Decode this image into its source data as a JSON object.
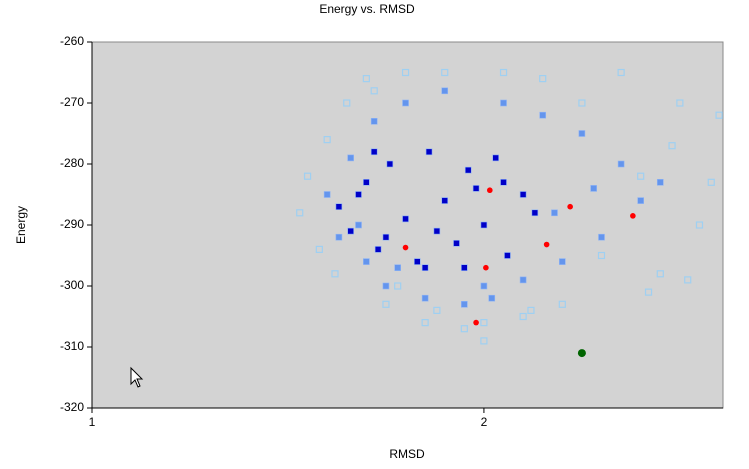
{
  "chart_data": {
    "type": "scatter",
    "title": "Energy vs. RMSD",
    "x_label": "RMSD",
    "y_label": "Energy",
    "xlim": [
      1,
      2.61
    ],
    "ylim": [
      -320,
      -260
    ],
    "xticks": [
      1,
      2
    ],
    "yticks": [
      -260,
      -270,
      -280,
      -290,
      -300,
      -310,
      -320
    ],
    "background": "#d3d3d3",
    "series": [
      {
        "color": "#9fd0f2",
        "marker": "square-open",
        "x": [
          1.53,
          1.55,
          1.58,
          1.6,
          1.62,
          1.65,
          1.7,
          1.75,
          1.8,
          1.85,
          1.9,
          1.95,
          2.0,
          2.05,
          2.1,
          2.15,
          2.2,
          2.25,
          2.3,
          2.35,
          2.4,
          2.45,
          2.5,
          2.55,
          2.6,
          2.58,
          2.52,
          2.48,
          2.42,
          1.78,
          1.88,
          2.0,
          2.12,
          1.72
        ],
        "values": [
          -288,
          -282,
          -294,
          -276,
          -298,
          -270,
          -266,
          -303,
          -265,
          -306,
          -265,
          -307,
          -309,
          -265,
          -305,
          -266,
          -303,
          -270,
          -295,
          -265,
          -282,
          -298,
          -270,
          -290,
          -272,
          -283,
          -299,
          -277,
          -301,
          -300,
          -304,
          -306,
          -304,
          -268
        ]
      },
      {
        "color": "#6495ed",
        "marker": "square",
        "x": [
          1.6,
          1.63,
          1.66,
          1.7,
          1.72,
          1.75,
          1.8,
          1.85,
          1.9,
          1.95,
          2.0,
          2.05,
          2.1,
          2.15,
          2.2,
          2.25,
          2.3,
          2.35,
          2.4,
          2.45,
          1.68,
          1.78,
          2.02,
          2.18,
          2.28
        ],
        "values": [
          -285,
          -292,
          -279,
          -296,
          -273,
          -300,
          -270,
          -302,
          -268,
          -303,
          -300,
          -270,
          -299,
          -272,
          -296,
          -275,
          -292,
          -280,
          -286,
          -283,
          -290,
          -297,
          -302,
          -288,
          -284
        ]
      },
      {
        "color": "#0000c8",
        "marker": "square",
        "x": [
          1.63,
          1.66,
          1.7,
          1.73,
          1.76,
          1.8,
          1.83,
          1.86,
          1.9,
          1.93,
          1.96,
          2.0,
          2.03,
          2.06,
          2.1,
          2.13,
          1.68,
          1.75,
          1.85,
          1.95,
          2.05,
          1.72,
          1.88,
          1.98
        ],
        "values": [
          -287,
          -291,
          -283,
          -294,
          -280,
          -289,
          -296,
          -278,
          -286,
          -293,
          -281,
          -290,
          -279,
          -295,
          -285,
          -288,
          -285,
          -292,
          -297,
          -297,
          -283,
          -278,
          -291,
          -284
        ]
      },
      {
        "color": "#ff0000",
        "marker": "circle",
        "x": [
          1.8,
          2.015,
          2.005,
          1.98,
          2.16,
          2.22,
          2.38
        ],
        "values": [
          -293.7,
          -284.3,
          -297,
          -306,
          -293.2,
          -287,
          -288.5
        ]
      },
      {
        "color": "#006400",
        "marker": "circle-large",
        "x": [
          2.25
        ],
        "values": [
          -311
        ]
      }
    ]
  }
}
